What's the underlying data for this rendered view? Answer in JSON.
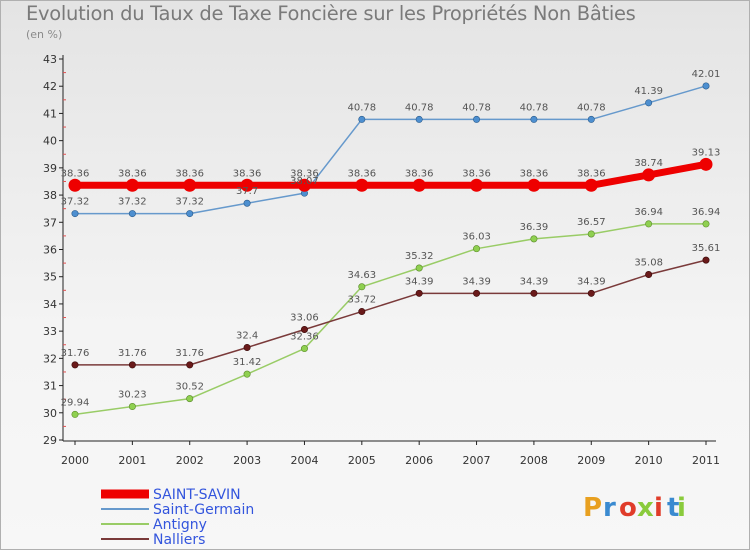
{
  "header": {
    "title": "Evolution du Taux de Taxe Foncière sur les Propriétés Non Bâties",
    "subtitle": "(en %)"
  },
  "brand": {
    "name": "Proxiti",
    "colors": [
      "#e8a020",
      "#3a8ad0",
      "#e03c2a",
      "#8acb3c",
      "#e03c2a",
      "#3a8ad0",
      "#8acb3c"
    ]
  },
  "chart_data": {
    "type": "line",
    "title": "Evolution du Taux de Taxe Foncière sur les Propriétés Non Bâties",
    "ylabel": "(en %)",
    "x": [
      "2000",
      "2001",
      "2002",
      "2003",
      "2004",
      "2005",
      "2006",
      "2007",
      "2008",
      "2009",
      "2010",
      "2011"
    ],
    "ylim": [
      29,
      43
    ],
    "yticks": [
      "29",
      "30",
      "31",
      "32",
      "33",
      "34",
      "35",
      "36",
      "37",
      "38",
      "39",
      "40",
      "41",
      "42",
      "43"
    ],
    "grid": false,
    "legend_position": "bottom-left",
    "series": [
      {
        "name": "SAINT-SAVIN",
        "color": "#ee0000",
        "labels": [
          "38.36",
          "38.36",
          "38.36",
          "38.36",
          "38.36",
          "38.36",
          "38.36",
          "38.36",
          "38.36",
          "38.36",
          "38.74",
          "39.13"
        ],
        "values": [
          38.36,
          38.36,
          38.36,
          38.36,
          38.36,
          38.36,
          38.36,
          38.36,
          38.36,
          38.36,
          38.74,
          39.13
        ]
      },
      {
        "name": "Saint-Germain",
        "color": "#6699cc",
        "labels": [
          "37.32",
          "37.32",
          "37.32",
          "37.7",
          "38.07",
          "40.78",
          "40.78",
          "40.78",
          "40.78",
          "40.78",
          "41.39",
          "42.01"
        ],
        "values": [
          37.32,
          37.32,
          37.32,
          37.7,
          38.07,
          40.78,
          40.78,
          40.78,
          40.78,
          40.78,
          41.39,
          42.01
        ]
      },
      {
        "name": "Antigny",
        "color": "#99cc66",
        "labels": [
          "29.94",
          "30.23",
          "30.52",
          "31.42",
          "32.36",
          "34.63",
          "35.32",
          "36.03",
          "36.39",
          "36.57",
          "36.94",
          "36.94"
        ],
        "values": [
          29.94,
          30.23,
          30.52,
          31.42,
          32.36,
          34.63,
          35.32,
          36.03,
          36.39,
          36.57,
          36.94,
          36.94
        ]
      },
      {
        "name": "Nalliers",
        "color": "#7a3a3a",
        "labels": [
          "31.76",
          "31.76",
          "31.76",
          "32.4",
          "33.06",
          "33.72",
          "34.39",
          "34.39",
          "34.39",
          "34.39",
          "35.08",
          "35.61"
        ],
        "values": [
          31.76,
          31.76,
          31.76,
          32.4,
          33.06,
          33.72,
          34.39,
          34.39,
          34.39,
          34.39,
          35.08,
          35.61
        ]
      }
    ]
  }
}
